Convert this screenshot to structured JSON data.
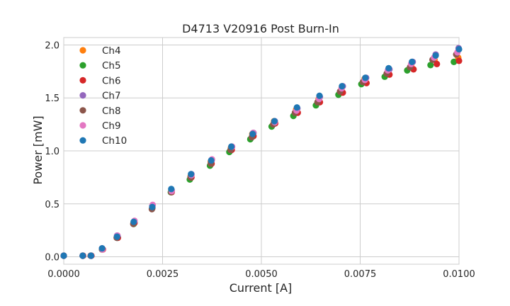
{
  "chart_data": {
    "type": "scatter",
    "title": "D4713 V20916 Post Burn-In",
    "xlabel": "Current [A]",
    "ylabel": "Power [mW]",
    "xlim": [
      0.0,
      0.01
    ],
    "ylim": [
      -0.07,
      2.07
    ],
    "xticks": [
      0.0,
      0.0025,
      0.005,
      0.0075,
      0.01
    ],
    "xtick_labels": [
      "0.0000",
      "0.0025",
      "0.0050",
      "0.0075",
      "0.0100"
    ],
    "yticks": [
      0.0,
      0.5,
      1.0,
      1.5,
      2.0
    ],
    "ytick_labels": [
      "0.0",
      "0.5",
      "1.0",
      "1.5",
      "2.0"
    ],
    "grid": true,
    "legend_position": "top-left",
    "series": [
      {
        "name": "Ch4",
        "color": "#ff7f0e",
        "x": [
          0.0,
          0.00048,
          0.00069,
          0.00097,
          0.00135,
          0.00177,
          0.00224,
          0.00272,
          0.00321,
          0.00372,
          0.00423,
          0.00477,
          0.00532,
          0.00588,
          0.00645,
          0.00703,
          0.00761,
          0.0082,
          0.00879,
          0.00938,
          0.00998
        ],
        "y": [
          0.01,
          0.01,
          0.01,
          0.07,
          0.19,
          0.32,
          0.47,
          0.62,
          0.76,
          0.9,
          1.03,
          1.16,
          1.28,
          1.39,
          1.49,
          1.59,
          1.68,
          1.75,
          1.81,
          1.86,
          1.88
        ]
      },
      {
        "name": "Ch5",
        "color": "#2ca02c",
        "x": [
          0.0,
          0.00048,
          0.00069,
          0.00097,
          0.00135,
          0.00177,
          0.00224,
          0.00271,
          0.00319,
          0.0037,
          0.00419,
          0.00472,
          0.00526,
          0.00581,
          0.00638,
          0.00695,
          0.00753,
          0.00812,
          0.00869,
          0.00928,
          0.00987
        ],
        "y": [
          0.01,
          0.01,
          0.01,
          0.07,
          0.18,
          0.31,
          0.46,
          0.61,
          0.73,
          0.86,
          0.99,
          1.11,
          1.23,
          1.33,
          1.43,
          1.53,
          1.63,
          1.7,
          1.76,
          1.81,
          1.84
        ]
      },
      {
        "name": "Ch6",
        "color": "#d62728",
        "x": [
          0.0,
          0.00049,
          0.0007,
          0.00099,
          0.00137,
          0.00179,
          0.00224,
          0.00273,
          0.00323,
          0.00374,
          0.00425,
          0.0048,
          0.00535,
          0.00592,
          0.00648,
          0.00706,
          0.00766,
          0.00824,
          0.00885,
          0.00944,
          0.01
        ],
        "y": [
          0.01,
          0.01,
          0.01,
          0.07,
          0.18,
          0.32,
          0.46,
          0.61,
          0.75,
          0.88,
          1.01,
          1.14,
          1.26,
          1.36,
          1.46,
          1.55,
          1.64,
          1.72,
          1.77,
          1.82,
          1.85
        ]
      },
      {
        "name": "Ch7",
        "color": "#9467bd",
        "x": [
          0.0,
          0.00048,
          0.00069,
          0.00097,
          0.00135,
          0.00178,
          0.00224,
          0.00273,
          0.00323,
          0.00374,
          0.00425,
          0.0048,
          0.00534,
          0.00591,
          0.00648,
          0.00706,
          0.00765,
          0.00824,
          0.00883,
          0.00941,
          0.00999
        ],
        "y": [
          0.01,
          0.01,
          0.01,
          0.08,
          0.2,
          0.33,
          0.48,
          0.63,
          0.78,
          0.91,
          1.04,
          1.17,
          1.28,
          1.4,
          1.51,
          1.61,
          1.69,
          1.77,
          1.84,
          1.91,
          1.97
        ]
      },
      {
        "name": "Ch8",
        "color": "#8c564b",
        "x": [
          0.0,
          0.00048,
          0.00068,
          0.00097,
          0.00134,
          0.00176,
          0.00223,
          0.00272,
          0.00321,
          0.00372,
          0.00422,
          0.00476,
          0.0053,
          0.00585,
          0.00642,
          0.00699,
          0.00757,
          0.00817,
          0.00876,
          0.00933,
          0.00993
        ],
        "y": [
          0.01,
          0.01,
          0.01,
          0.07,
          0.18,
          0.31,
          0.45,
          0.61,
          0.75,
          0.88,
          1.01,
          1.13,
          1.25,
          1.36,
          1.46,
          1.56,
          1.65,
          1.73,
          1.79,
          1.86,
          1.91
        ]
      },
      {
        "name": "Ch9",
        "color": "#e377c2",
        "x": [
          0.0,
          0.00048,
          0.00069,
          0.00098,
          0.00136,
          0.00179,
          0.00225,
          0.00273,
          0.00323,
          0.00375,
          0.00426,
          0.00479,
          0.00534,
          0.00589,
          0.00646,
          0.00703,
          0.00762,
          0.0082,
          0.00879,
          0.00937,
          0.00996
        ],
        "y": [
          0.01,
          0.01,
          0.01,
          0.07,
          0.2,
          0.34,
          0.49,
          0.62,
          0.77,
          0.92,
          1.04,
          1.17,
          1.27,
          1.38,
          1.49,
          1.59,
          1.67,
          1.76,
          1.82,
          1.88,
          1.93
        ]
      },
      {
        "name": "Ch10",
        "color": "#1f77b4",
        "x": [
          0.0,
          0.00048,
          0.00069,
          0.00097,
          0.00135,
          0.00177,
          0.00224,
          0.00272,
          0.00322,
          0.00373,
          0.00424,
          0.00478,
          0.00533,
          0.0059,
          0.00647,
          0.00704,
          0.00763,
          0.00822,
          0.00881,
          0.00941,
          0.01
        ],
        "y": [
          0.01,
          0.01,
          0.01,
          0.08,
          0.19,
          0.33,
          0.47,
          0.64,
          0.78,
          0.91,
          1.04,
          1.16,
          1.28,
          1.41,
          1.52,
          1.61,
          1.69,
          1.78,
          1.84,
          1.9,
          1.96
        ]
      }
    ]
  }
}
